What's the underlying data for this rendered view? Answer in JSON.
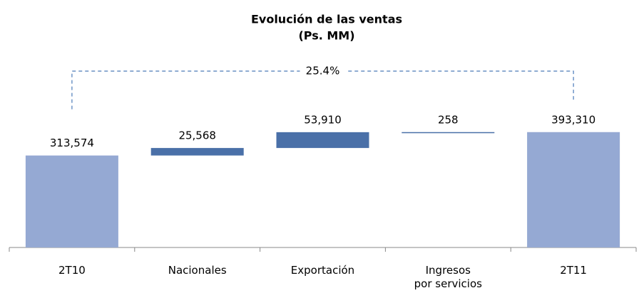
{
  "chart_data": {
    "type": "waterfall",
    "title": "Evolución de las ventas",
    "subtitle": "(Ps. MM)",
    "categories": [
      "2T10",
      "Nacionales",
      "Exportación",
      "Ingresos\npor servicios",
      "2T11"
    ],
    "values": [
      313574,
      25568,
      53910,
      258,
      393310
    ],
    "value_labels": [
      "313,574",
      "25,568",
      "53,910",
      "258",
      "393,310"
    ],
    "totals": [
      true,
      false,
      false,
      false,
      true
    ],
    "total_color": "#95a9d3",
    "increment_color": "#4a70a8",
    "ylim": [
      0,
      400000
    ],
    "annotation": "25.4%",
    "annotation_color": "#4a7ab8"
  }
}
